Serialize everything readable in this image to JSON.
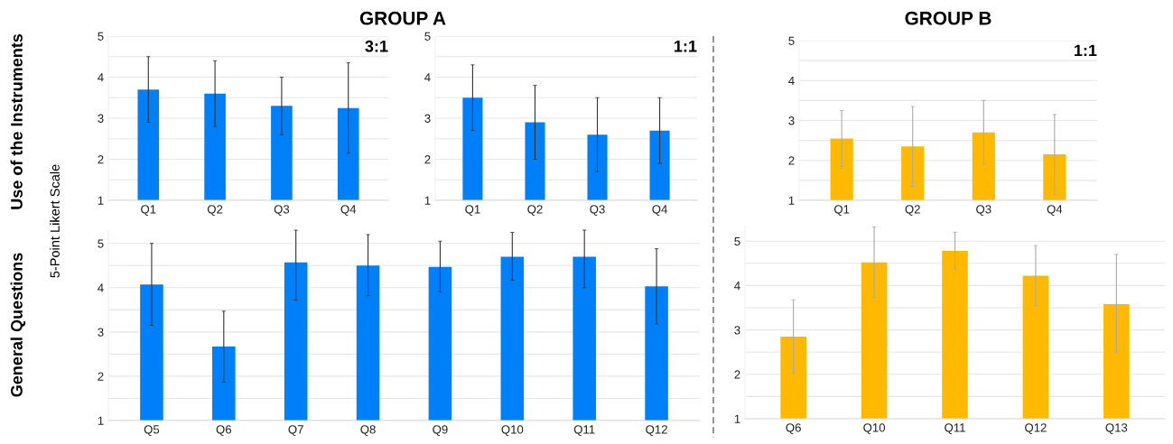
{
  "chart_data": [
    {
      "type": "bar",
      "title": "GROUP A",
      "ylabel": "Use of the Instruments",
      "annotations": [
        "3:1"
      ],
      "categories": [
        "Q1",
        "Q2",
        "Q3",
        "Q4"
      ],
      "color": "#0080f8",
      "values": [
        3.7,
        3.6,
        3.3,
        3.25
      ],
      "errors": [
        [
          2.9,
          4.5
        ],
        [
          2.8,
          4.4
        ],
        [
          2.6,
          4.0
        ],
        [
          2.15,
          4.35
        ]
      ],
      "ylim": [
        1,
        5
      ],
      "yticks": [
        1,
        {
          "value": 1.5,
          "label": null
        },
        2,
        {
          "value": 2.5,
          "label": null
        },
        3,
        {
          "value": 3.5,
          "label": null
        },
        4,
        {
          "value": 4.5,
          "label": null
        },
        5
      ],
      "grid": "y"
    },
    {
      "type": "bar",
      "annotations": [
        "1:1"
      ],
      "categories": [
        "Q1",
        "Q2",
        "Q3",
        "Q4"
      ],
      "color": "#0080f8",
      "values": [
        3.5,
        2.9,
        2.6,
        2.7
      ],
      "errors": [
        [
          2.7,
          4.3
        ],
        [
          2.0,
          3.8
        ],
        [
          1.7,
          3.5
        ],
        [
          1.9,
          3.5
        ]
      ],
      "ylim": [
        1,
        5
      ],
      "yticks": [
        1,
        {
          "value": 1.5,
          "label": null
        },
        2,
        {
          "value": 2.5,
          "label": null
        },
        3,
        {
          "value": 3.5,
          "label": null
        },
        4,
        {
          "value": 4.5,
          "label": null
        },
        5
      ],
      "grid": "y"
    },
    {
      "type": "bar",
      "title": "GROUP B",
      "annotations": [
        "1:1"
      ],
      "categories": [
        "Q1",
        "Q2",
        "Q3",
        "Q4"
      ],
      "color": "#ffb900",
      "values": [
        2.55,
        2.35,
        2.7,
        2.15
      ],
      "errors": [
        [
          1.85,
          3.25
        ],
        [
          1.35,
          3.35
        ],
        [
          1.9,
          3.5
        ],
        [
          1.15,
          3.15
        ]
      ],
      "ylim": [
        1,
        5
      ],
      "yticks": [
        1,
        {
          "value": 1.5,
          "label": null
        },
        2,
        {
          "value": 2.5,
          "label": null
        },
        3,
        {
          "value": 3.5,
          "label": null
        },
        4,
        {
          "value": 4.5,
          "label": null
        },
        5
      ],
      "grid": "y"
    },
    {
      "type": "bar",
      "ylabel": "General Questions",
      "annotations": [
        "5-Point Likert Scale"
      ],
      "categories": [
        "Q5",
        "Q6",
        "Q7",
        "Q8",
        "Q9",
        "Q10",
        "Q11",
        "Q12"
      ],
      "color": "#0080f8",
      "values": [
        4.07,
        2.67,
        4.57,
        4.5,
        4.47,
        4.7,
        4.7,
        4.03
      ],
      "errors": [
        [
          3.15,
          5.0
        ],
        [
          1.87,
          3.47
        ],
        [
          3.72,
          5.3
        ],
        [
          3.82,
          5.2
        ],
        [
          3.9,
          5.05
        ],
        [
          4.17,
          5.25
        ],
        [
          4.0,
          5.3
        ],
        [
          3.18,
          4.88
        ]
      ],
      "ylim": [
        1,
        5.3
      ],
      "yticks": [
        1,
        {
          "value": 1.5,
          "label": null
        },
        2,
        {
          "value": 2.5,
          "label": null
        },
        3,
        {
          "value": 3.5,
          "label": null
        },
        4,
        {
          "value": 4.5,
          "label": null
        },
        5
      ],
      "grid": "y"
    },
    {
      "type": "bar",
      "categories": [
        "Q6",
        "Q10",
        "Q11",
        "Q12",
        "Q13"
      ],
      "color": "#ffb900",
      "values": [
        2.85,
        4.52,
        4.78,
        4.22,
        3.58
      ],
      "errors": [
        [
          2.02,
          3.68
        ],
        [
          3.73,
          5.32
        ],
        [
          4.37,
          5.2
        ],
        [
          3.55,
          4.9
        ],
        [
          2.5,
          4.7
        ]
      ],
      "ylim": [
        1,
        5.35
      ],
      "yticks": [
        1,
        {
          "value": 1.5,
          "label": null
        },
        2,
        {
          "value": 2.5,
          "label": null
        },
        3,
        {
          "value": 3.5,
          "label": null
        },
        4,
        {
          "value": 4.5,
          "label": null
        },
        5
      ],
      "grid": "y"
    }
  ]
}
